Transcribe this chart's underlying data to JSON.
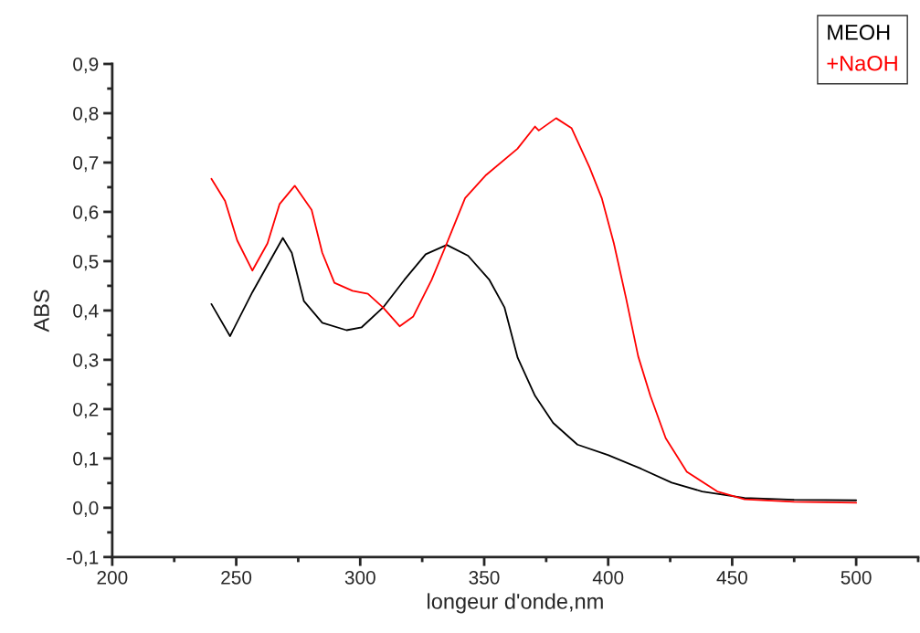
{
  "chart_data": {
    "type": "line",
    "xlabel": "longeur d'onde,nm",
    "ylabel": "ABS",
    "xlim": [
      200,
      525
    ],
    "xticks": [
      200,
      250,
      300,
      350,
      400,
      450,
      500
    ],
    "ylim": [
      -0.1,
      0.9
    ],
    "yticks": [
      {
        "value": -0.1,
        "label": "-0,1"
      },
      {
        "value": 0.0,
        "label": "0,0"
      },
      {
        "value": 0.1,
        "label": "0,1"
      },
      {
        "value": 0.2,
        "label": "0,2"
      },
      {
        "value": 0.3,
        "label": "0,3"
      },
      {
        "value": 0.4,
        "label": "0,4"
      },
      {
        "value": 0.5,
        "label": "0,5"
      },
      {
        "value": 0.6,
        "label": "0,6"
      },
      {
        "value": 0.7,
        "label": "0,7"
      },
      {
        "value": 0.8,
        "label": "0,8"
      },
      {
        "value": 0.9,
        "label": "0,9"
      }
    ],
    "grid": false,
    "legend": "top right",
    "marker": "none",
    "line_style": "solid",
    "series": [
      {
        "name": "MEOH",
        "color": "#000000",
        "x": [
          240,
          247.5,
          256.5,
          268.8,
          272.4,
          277.3,
          284.7,
          294.5,
          300.6,
          309.2,
          317.8,
          326.4,
          334.9,
          343.5,
          352.1,
          358.2,
          363.5,
          370.5,
          377.8,
          387.6,
          399.9,
          413.3,
          425.6,
          437.9,
          455,
          475,
          500
        ],
        "values": [
          0.413,
          0.348,
          0.437,
          0.547,
          0.517,
          0.419,
          0.375,
          0.36,
          0.366,
          0.406,
          0.462,
          0.514,
          0.533,
          0.511,
          0.462,
          0.406,
          0.304,
          0.227,
          0.172,
          0.128,
          0.107,
          0.079,
          0.051,
          0.033,
          0.02,
          0.016,
          0.015
        ]
      },
      {
        "name": "+NaOH",
        "color": "#ff0000",
        "x": [
          240,
          245.5,
          250.4,
          256.5,
          262.6,
          267.5,
          273.6,
          280.4,
          284.7,
          289.6,
          296.9,
          303.1,
          309.2,
          315.9,
          321.4,
          328.8,
          334.9,
          342.3,
          350.8,
          363.4,
          370.5,
          372,
          379,
          385.2,
          392.5,
          397.4,
          402.3,
          407.2,
          412.1,
          417,
          423.2,
          431.7,
          444,
          455,
          475,
          500
        ],
        "values": [
          0.667,
          0.622,
          0.542,
          0.481,
          0.536,
          0.616,
          0.653,
          0.604,
          0.517,
          0.456,
          0.44,
          0.434,
          0.406,
          0.368,
          0.388,
          0.462,
          0.536,
          0.628,
          0.675,
          0.728,
          0.773,
          0.765,
          0.79,
          0.77,
          0.69,
          0.628,
          0.536,
          0.425,
          0.307,
          0.227,
          0.141,
          0.073,
          0.033,
          0.017,
          0.012,
          0.01
        ]
      }
    ]
  }
}
